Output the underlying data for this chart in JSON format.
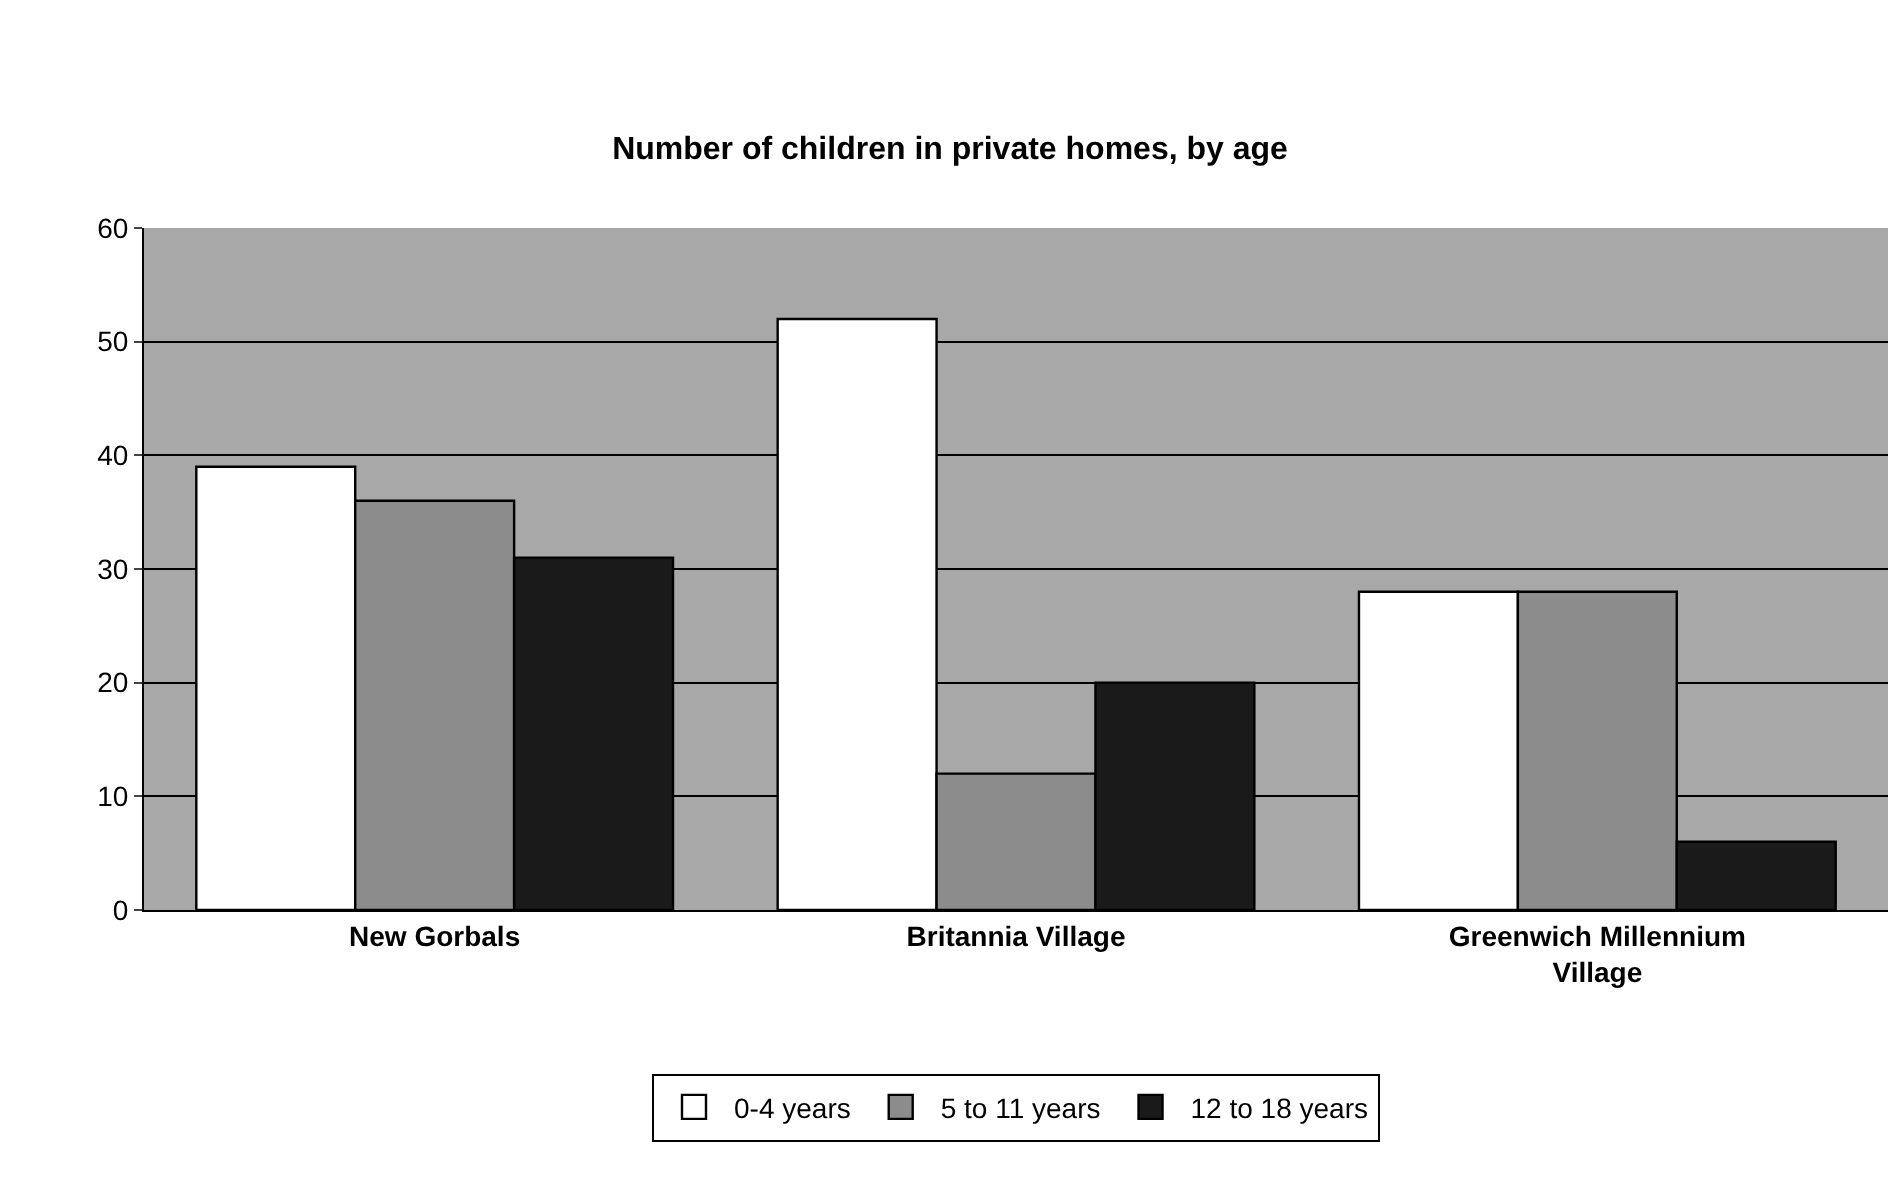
{
  "chart_data": {
    "type": "bar",
    "title": "Number of children in private homes, by age",
    "categories": [
      "New Gorbals",
      "Britannia Village",
      "Greenwich Millennium Village"
    ],
    "series": [
      {
        "name": "0-4 years",
        "color": "#ffffff",
        "values": [
          39,
          52,
          28
        ]
      },
      {
        "name": "5 to 11 years",
        "color": "#8c8c8c",
        "values": [
          36,
          12,
          28
        ]
      },
      {
        "name": "12 to 18 years",
        "color": "#1a1a1a",
        "values": [
          31,
          20,
          6
        ]
      }
    ],
    "ylim": [
      0,
      60
    ],
    "yticks": [
      0,
      10,
      20,
      30,
      40,
      50,
      60
    ],
    "grid": "y",
    "legend": "bottom"
  }
}
